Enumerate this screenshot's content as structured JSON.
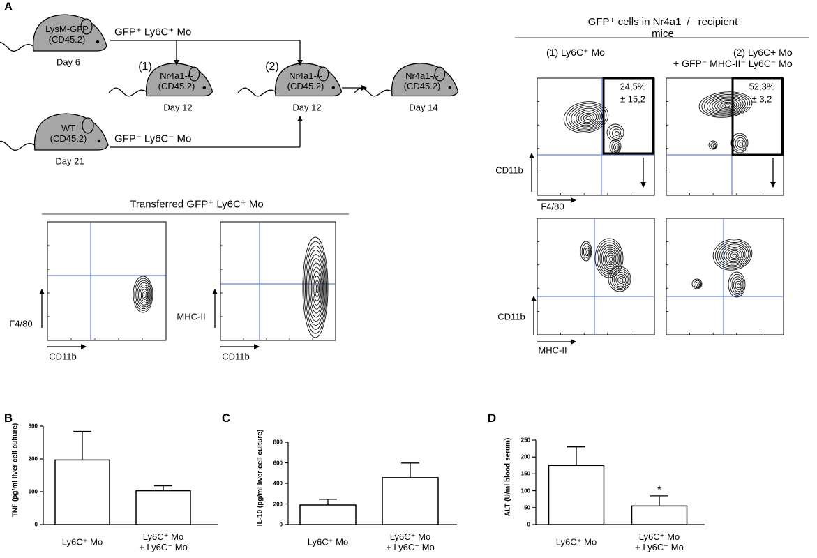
{
  "panel_a": {
    "label": "A",
    "mice": [
      {
        "label": "LysM-GFP\n(CD45.2)",
        "day": "Day 6"
      },
      {
        "label": "Nr4a1-/-\n(CD45.2)",
        "day": "Day 12"
      },
      {
        "label": "Nr4a1-/-\n(CD45.2)",
        "day": "Day 12"
      },
      {
        "label": "Nr4a1-/-\n(CD45.2)",
        "day": "Day 14"
      },
      {
        "label": "WT\n(CD45.2)",
        "day": "Day 21"
      }
    ],
    "numbers": [
      "(1)",
      "(2)"
    ],
    "arrows": [
      "GFP⁺ Ly6C⁺ Mo",
      "GFP⁻ Ly6C⁻ Mo"
    ],
    "transferred": {
      "title": "Transferred GFP⁺ Ly6C⁺ Mo",
      "plots": [
        {
          "y": "F4/80",
          "x": "CD11b"
        },
        {
          "y": "MHC-II",
          "x": "CD11b"
        }
      ]
    },
    "recipient": {
      "title": "GFP⁺ cells in Nr4a1⁻/⁻ recipient mice",
      "groups": [
        "(1) Ly6C⁺ Mo",
        "(2) Ly6C+ Mo\n+ GFP⁻ MHC-II⁻ Ly6C⁻ Mo"
      ],
      "gates": [
        {
          "percent": "24,5%",
          "sd": "± 15,2"
        },
        {
          "percent": "52,3%",
          "sd": "± 3,2"
        }
      ],
      "axes": [
        {
          "y": "CD11b",
          "x": "F4/80"
        },
        {
          "y": "CD11b",
          "x": "MHC-II"
        }
      ]
    }
  },
  "chart_data": [
    {
      "type": "bar",
      "panel": "B",
      "ylabel": "TNF (pg/ml liver cell culture)",
      "categories": [
        "Ly6C⁺ Mo",
        "Ly6C⁺ Mo\n+ Ly6C⁻ Mo"
      ],
      "values": [
        197,
        103
      ],
      "errors": [
        87,
        15
      ],
      "color": "#ffffff",
      "ylim": [
        0,
        300
      ],
      "yticks": [
        0,
        100,
        200,
        300
      ]
    },
    {
      "type": "bar",
      "panel": "C",
      "ylabel": "IL-10 (pg/ml liver cell culture)",
      "categories": [
        "Ly6C⁺ Mo",
        "Ly6C⁺ Mo\n+ Ly6C⁻ Mo"
      ],
      "values": [
        190,
        455
      ],
      "errors": [
        55,
        143
      ],
      "color": "#ffffff",
      "ylim": [
        0,
        800
      ],
      "yticks": [
        0,
        200,
        400,
        600,
        800
      ]
    },
    {
      "type": "bar",
      "panel": "D",
      "ylabel": "ALT (U/ml blood serum)",
      "categories": [
        "Ly6C⁺ Mo",
        "Ly6C⁺ Mo\n+ Ly6C⁻ Mo"
      ],
      "values": [
        175,
        55
      ],
      "errors": [
        55,
        30
      ],
      "color": "#ffffff",
      "ylim": [
        0,
        250
      ],
      "yticks": [
        0,
        50,
        100,
        150,
        200,
        250
      ],
      "annotation": "*"
    }
  ]
}
